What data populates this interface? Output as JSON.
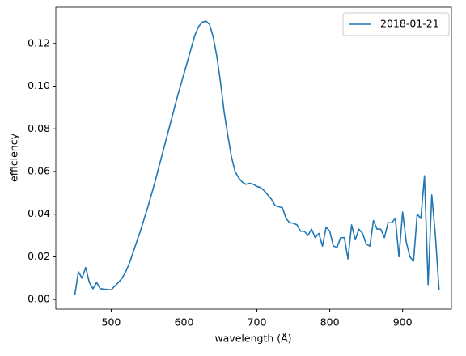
{
  "chart_data": {
    "type": "line",
    "xlabel": "wavelength (Å)",
    "ylabel": "efficiency",
    "x": [
      450,
      455,
      460,
      465,
      470,
      475,
      480,
      485,
      500,
      510,
      515,
      520,
      525,
      530,
      540,
      550,
      560,
      570,
      580,
      590,
      600,
      610,
      615,
      620,
      625,
      630,
      635,
      640,
      645,
      650,
      655,
      660,
      665,
      670,
      675,
      680,
      685,
      690,
      695,
      700,
      705,
      710,
      715,
      720,
      725,
      735,
      740,
      745,
      750,
      755,
      760,
      765,
      770,
      775,
      780,
      785,
      790,
      795,
      800,
      805,
      810,
      815,
      820,
      825,
      830,
      835,
      840,
      845,
      850,
      855,
      860,
      865,
      870,
      875,
      880,
      885,
      890,
      895,
      900,
      905,
      910,
      915,
      920,
      925,
      930,
      935,
      940,
      945,
      950
    ],
    "series": [
      {
        "name": "2018-01-21",
        "color": "#1f77b4",
        "values": [
          0.002,
          0.013,
          0.01,
          0.015,
          0.008,
          0.005,
          0.008,
          0.005,
          0.0045,
          0.008,
          0.01,
          0.013,
          0.017,
          0.022,
          0.032,
          0.043,
          0.055,
          0.068,
          0.081,
          0.094,
          0.106,
          0.118,
          0.124,
          0.128,
          0.13,
          0.1305,
          0.129,
          0.123,
          0.114,
          0.102,
          0.088,
          0.077,
          0.067,
          0.06,
          0.057,
          0.055,
          0.054,
          0.0545,
          0.054,
          0.053,
          0.0525,
          0.051,
          0.049,
          0.047,
          0.044,
          0.043,
          0.038,
          0.036,
          0.0358,
          0.035,
          0.032,
          0.032,
          0.03,
          0.033,
          0.029,
          0.031,
          0.025,
          0.034,
          0.032,
          0.025,
          0.0245,
          0.029,
          0.029,
          0.019,
          0.035,
          0.028,
          0.033,
          0.031,
          0.026,
          0.025,
          0.037,
          0.033,
          0.033,
          0.029,
          0.036,
          0.036,
          0.038,
          0.02,
          0.041,
          0.027,
          0.02,
          0.018,
          0.04,
          0.038,
          0.058,
          0.007,
          0.049,
          0.03,
          0.0045
        ]
      }
    ],
    "xlim": [
      424,
      967
    ],
    "ylim": [
      -0.0045,
      0.137
    ],
    "xticks": [
      500,
      600,
      700,
      800,
      900
    ],
    "yticks": [
      {
        "value": 0,
        "label": "0.00"
      },
      {
        "value": 0.02,
        "label": "0.02"
      },
      {
        "value": 0.04,
        "label": "0.04"
      },
      {
        "value": 0.06,
        "label": "0.06"
      },
      {
        "value": 0.08,
        "label": "0.08"
      },
      {
        "value": 0.1,
        "label": "0.10"
      },
      {
        "value": 0.12,
        "label": "0.12"
      }
    ],
    "legend": "upper right"
  }
}
